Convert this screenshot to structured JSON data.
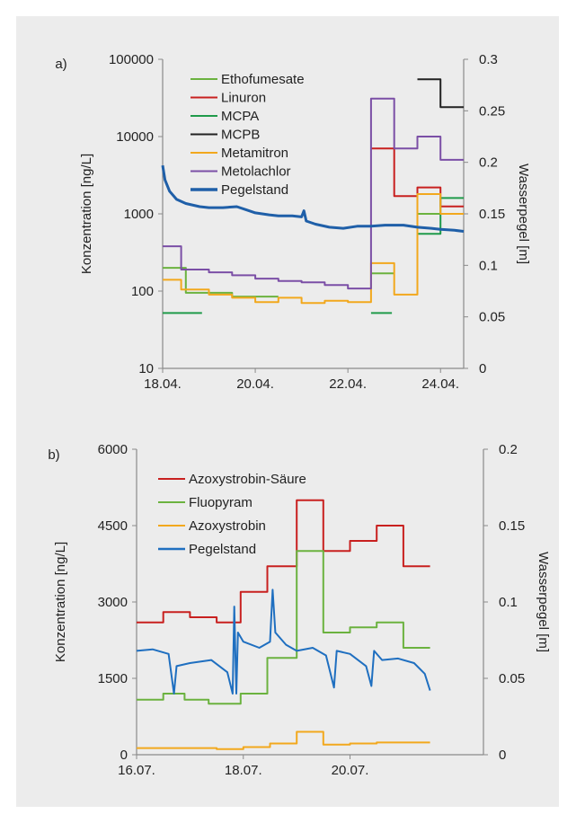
{
  "chart_data": [
    {
      "panel_label": "a)",
      "type": "line",
      "x_ticks": [
        "18.04.",
        "20.04.",
        "22.04.",
        "24.04."
      ],
      "ylabel": "Konzentration [ng/L]",
      "y2label": "Wasserpegel [m]",
      "y_scale": "log",
      "ylim": [
        10,
        100000
      ],
      "y_ticks": [
        "10",
        "100",
        "1000",
        "10000",
        "100000"
      ],
      "y2lim": [
        0,
        0.3
      ],
      "y2_ticks": [
        "0",
        "0.05",
        "0.1",
        "0.15",
        "0.2",
        "0.25",
        "0.3"
      ],
      "xlim_days": [
        0,
        6.5
      ],
      "legend_position": "top-left",
      "series": [
        {
          "name": "Ethofumesate",
          "color": "#6bb23f",
          "kind": "step",
          "points": [
            [
              0,
              200
            ],
            [
              0.5,
              200
            ],
            [
              0.5,
              95
            ],
            [
              1.5,
              95
            ],
            [
              1.5,
              85
            ],
            [
              2.5,
              85
            ],
            [
              2.5,
              null
            ],
            [
              4.5,
              null
            ],
            [
              4.5,
              170
            ],
            [
              5.0,
              170
            ],
            [
              5.0,
              null
            ],
            [
              5.5,
              null
            ],
            [
              5.5,
              1000
            ],
            [
              6.0,
              1000
            ],
            [
              6.0,
              1000
            ],
            [
              6.5,
              1000
            ]
          ]
        },
        {
          "name": "Linuron",
          "color": "#c8201f",
          "kind": "step",
          "points": [
            [
              4.5,
              7000
            ],
            [
              5.0,
              7000
            ],
            [
              5.0,
              1700
            ],
            [
              5.5,
              1700
            ],
            [
              5.5,
              2200
            ],
            [
              6.0,
              2200
            ],
            [
              6.0,
              1250
            ],
            [
              6.5,
              1250
            ]
          ]
        },
        {
          "name": "MCPA",
          "color": "#1f9a4a",
          "kind": "step",
          "points": [
            [
              0,
              52
            ],
            [
              0.85,
              52
            ],
            [
              0.85,
              null
            ],
            [
              4.5,
              null
            ],
            [
              4.5,
              52
            ],
            [
              4.95,
              52
            ],
            [
              4.95,
              null
            ],
            [
              5.5,
              null
            ],
            [
              5.5,
              550
            ],
            [
              6.0,
              550
            ],
            [
              6.0,
              1600
            ],
            [
              6.5,
              1600
            ]
          ]
        },
        {
          "name": "MCPB",
          "color": "#222222",
          "kind": "step",
          "points": [
            [
              5.5,
              55000
            ],
            [
              6.0,
              55000
            ],
            [
              6.0,
              24000
            ],
            [
              6.5,
              24000
            ]
          ]
        },
        {
          "name": "Metamitron",
          "color": "#f2a81d",
          "kind": "step",
          "points": [
            [
              0,
              140
            ],
            [
              0.4,
              140
            ],
            [
              0.4,
              105
            ],
            [
              1.0,
              105
            ],
            [
              1.0,
              90
            ],
            [
              1.5,
              90
            ],
            [
              1.5,
              82
            ],
            [
              2.0,
              82
            ],
            [
              2.0,
              72
            ],
            [
              2.5,
              72
            ],
            [
              2.5,
              82
            ],
            [
              3.0,
              82
            ],
            [
              3.0,
              70
            ],
            [
              3.5,
              70
            ],
            [
              3.5,
              75
            ],
            [
              4.0,
              75
            ],
            [
              4.0,
              72
            ],
            [
              4.5,
              72
            ],
            [
              4.5,
              230
            ],
            [
              5.0,
              230
            ],
            [
              5.0,
              90
            ],
            [
              5.5,
              90
            ],
            [
              5.5,
              1800
            ],
            [
              6.0,
              1800
            ],
            [
              6.0,
              1000
            ],
            [
              6.5,
              1000
            ]
          ]
        },
        {
          "name": "Metolachlor",
          "color": "#7b4fa6",
          "kind": "step",
          "points": [
            [
              0,
              380
            ],
            [
              0.4,
              380
            ],
            [
              0.4,
              190
            ],
            [
              1.0,
              190
            ],
            [
              1.0,
              175
            ],
            [
              1.5,
              175
            ],
            [
              1.5,
              160
            ],
            [
              2.0,
              160
            ],
            [
              2.0,
              145
            ],
            [
              2.5,
              145
            ],
            [
              2.5,
              135
            ],
            [
              3.0,
              135
            ],
            [
              3.0,
              130
            ],
            [
              3.5,
              130
            ],
            [
              3.5,
              120
            ],
            [
              4.0,
              120
            ],
            [
              4.0,
              108
            ],
            [
              4.5,
              108
            ],
            [
              4.5,
              31000
            ],
            [
              5.0,
              31000
            ],
            [
              5.0,
              7000
            ],
            [
              5.5,
              7000
            ],
            [
              5.5,
              10000
            ],
            [
              6.0,
              10000
            ],
            [
              6.0,
              5000
            ],
            [
              6.5,
              5000
            ]
          ]
        },
        {
          "name": "Pegelstand",
          "color": "#1f5fa8",
          "kind": "line",
          "axis": "right",
          "points": [
            [
              0,
              0.197
            ],
            [
              0.05,
              0.183
            ],
            [
              0.15,
              0.172
            ],
            [
              0.3,
              0.164
            ],
            [
              0.5,
              0.16
            ],
            [
              0.8,
              0.157
            ],
            [
              1.0,
              0.156
            ],
            [
              1.3,
              0.156
            ],
            [
              1.6,
              0.157
            ],
            [
              1.8,
              0.154
            ],
            [
              2.0,
              0.151
            ],
            [
              2.3,
              0.149
            ],
            [
              2.5,
              0.148
            ],
            [
              2.8,
              0.148
            ],
            [
              3.0,
              0.147
            ],
            [
              3.05,
              0.153
            ],
            [
              3.1,
              0.143
            ],
            [
              3.3,
              0.14
            ],
            [
              3.6,
              0.137
            ],
            [
              3.9,
              0.136
            ],
            [
              4.2,
              0.138
            ],
            [
              4.5,
              0.138
            ],
            [
              4.8,
              0.139
            ],
            [
              5.2,
              0.139
            ],
            [
              5.5,
              0.137
            ],
            [
              5.8,
              0.136
            ],
            [
              6.0,
              0.135
            ],
            [
              6.3,
              0.134
            ],
            [
              6.5,
              0.133
            ]
          ]
        }
      ]
    },
    {
      "panel_label": "b)",
      "type": "line",
      "x_ticks": [
        "16.07.",
        "18.07.",
        "20.07."
      ],
      "ylabel": "Konzentration [ng/L]",
      "y2label": "Wasserpegel [m]",
      "ylim": [
        0,
        6000
      ],
      "y_ticks": [
        "0",
        "1500",
        "3000",
        "4500",
        "6000"
      ],
      "y2lim": [
        0,
        0.2
      ],
      "y2_ticks": [
        "0",
        "0.05",
        "0.1",
        "0.15",
        "0.2"
      ],
      "xlim_days": [
        0,
        6.5
      ],
      "legend_position": "top-left",
      "series": [
        {
          "name": "Azoxystrobin-Säure",
          "color": "#c8201f",
          "kind": "step",
          "points": [
            [
              0,
              2600
            ],
            [
              0.5,
              2600
            ],
            [
              0.5,
              2800
            ],
            [
              1.0,
              2800
            ],
            [
              1.0,
              2700
            ],
            [
              1.5,
              2700
            ],
            [
              1.5,
              2600
            ],
            [
              1.95,
              2600
            ],
            [
              1.95,
              3200
            ],
            [
              2.45,
              3200
            ],
            [
              2.45,
              3700
            ],
            [
              3.0,
              3700
            ],
            [
              3.0,
              5000
            ],
            [
              3.5,
              5000
            ],
            [
              3.5,
              4000
            ],
            [
              4.0,
              4000
            ],
            [
              4.0,
              4200
            ],
            [
              4.5,
              4200
            ],
            [
              4.5,
              4500
            ],
            [
              5.0,
              4500
            ],
            [
              5.0,
              3700
            ],
            [
              5.5,
              3700
            ]
          ]
        },
        {
          "name": "Fluopyram",
          "color": "#6bb23f",
          "kind": "step",
          "points": [
            [
              0,
              1080
            ],
            [
              0.5,
              1080
            ],
            [
              0.5,
              1200
            ],
            [
              0.9,
              1200
            ],
            [
              0.9,
              1080
            ],
            [
              1.35,
              1080
            ],
            [
              1.35,
              1000
            ],
            [
              1.95,
              1000
            ],
            [
              1.95,
              1200
            ],
            [
              2.45,
              1200
            ],
            [
              2.45,
              1900
            ],
            [
              3.0,
              1900
            ],
            [
              3.0,
              4000
            ],
            [
              3.5,
              4000
            ],
            [
              3.5,
              2400
            ],
            [
              4.0,
              2400
            ],
            [
              4.0,
              2500
            ],
            [
              4.5,
              2500
            ],
            [
              4.5,
              2600
            ],
            [
              5.0,
              2600
            ],
            [
              5.0,
              2100
            ],
            [
              5.5,
              2100
            ]
          ]
        },
        {
          "name": "Azoxystrobin",
          "color": "#f2a81d",
          "kind": "step",
          "points": [
            [
              0,
              130
            ],
            [
              1.5,
              130
            ],
            [
              1.5,
              110
            ],
            [
              2.0,
              110
            ],
            [
              2.0,
              150
            ],
            [
              2.5,
              150
            ],
            [
              2.5,
              220
            ],
            [
              3.0,
              220
            ],
            [
              3.0,
              450
            ],
            [
              3.5,
              450
            ],
            [
              3.5,
              200
            ],
            [
              4.0,
              200
            ],
            [
              4.0,
              220
            ],
            [
              4.5,
              220
            ],
            [
              4.5,
              240
            ],
            [
              5.5,
              240
            ]
          ]
        },
        {
          "name": "Pegelstand",
          "color": "#1f6fc0",
          "kind": "line",
          "axis": "right",
          "points": [
            [
              0,
              0.068
            ],
            [
              0.3,
              0.069
            ],
            [
              0.6,
              0.066
            ],
            [
              0.7,
              0.04
            ],
            [
              0.75,
              0.058
            ],
            [
              1.0,
              0.06
            ],
            [
              1.4,
              0.062
            ],
            [
              1.7,
              0.054
            ],
            [
              1.8,
              0.04
            ],
            [
              1.83,
              0.097
            ],
            [
              1.87,
              0.04
            ],
            [
              1.9,
              0.08
            ],
            [
              2.0,
              0.074
            ],
            [
              2.3,
              0.07
            ],
            [
              2.5,
              0.074
            ],
            [
              2.55,
              0.108
            ],
            [
              2.6,
              0.08
            ],
            [
              2.8,
              0.072
            ],
            [
              3.0,
              0.068
            ],
            [
              3.3,
              0.07
            ],
            [
              3.55,
              0.065
            ],
            [
              3.7,
              0.044
            ],
            [
              3.75,
              0.068
            ],
            [
              4.0,
              0.066
            ],
            [
              4.3,
              0.058
            ],
            [
              4.4,
              0.045
            ],
            [
              4.45,
              0.068
            ],
            [
              4.6,
              0.062
            ],
            [
              4.9,
              0.063
            ],
            [
              5.2,
              0.06
            ],
            [
              5.4,
              0.053
            ],
            [
              5.5,
              0.042
            ]
          ]
        }
      ]
    }
  ]
}
